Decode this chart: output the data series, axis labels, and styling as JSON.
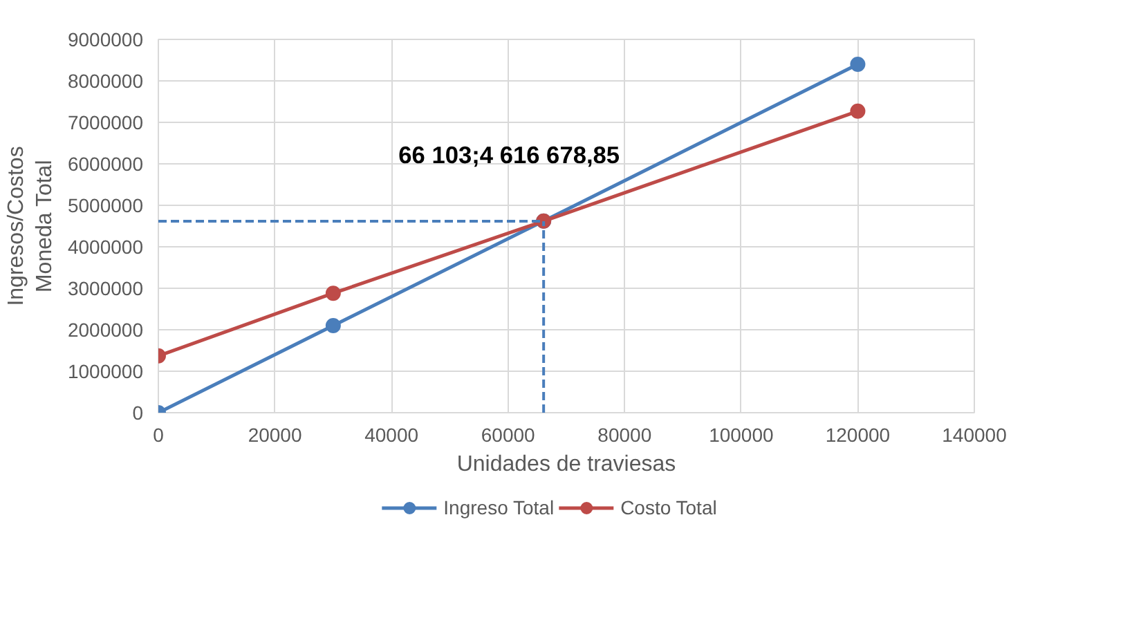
{
  "chart_data": {
    "type": "line",
    "xlabel": "Unidades de traviesas",
    "ylabel": "Ingresos/Costos\nMoneda Total",
    "x": [
      0,
      30000,
      66103,
      120000
    ],
    "series": [
      {
        "name": "Ingreso Total",
        "color": "#4a7ebb",
        "values": [
          0,
          2100000,
          4620000,
          8400000
        ]
      },
      {
        "name": "Costo Total",
        "color": "#be4b48",
        "values": [
          1370000,
          2880000,
          4620000,
          7270000
        ]
      }
    ],
    "xlim": [
      0,
      140000
    ],
    "xticks": [
      0,
      20000,
      40000,
      60000,
      80000,
      100000,
      120000,
      140000
    ],
    "ylim": [
      0,
      9000000
    ],
    "yticks": [
      0,
      1000000,
      2000000,
      3000000,
      4000000,
      5000000,
      6000000,
      7000000,
      8000000,
      9000000
    ],
    "ref_lines": [
      {
        "axis": "x",
        "value": 66103,
        "color": "#4a7ebb",
        "line_style": "dashed"
      },
      {
        "axis": "y",
        "value": 4616678.85,
        "color": "#4a7ebb",
        "line_style": "dashed"
      }
    ],
    "annotations": [
      {
        "text": "66 103;4 616 678,85",
        "x": 66103,
        "y": 4616678.85
      }
    ],
    "grid": true,
    "legend": "bottom",
    "marker": "circle",
    "line_style": "solid"
  }
}
